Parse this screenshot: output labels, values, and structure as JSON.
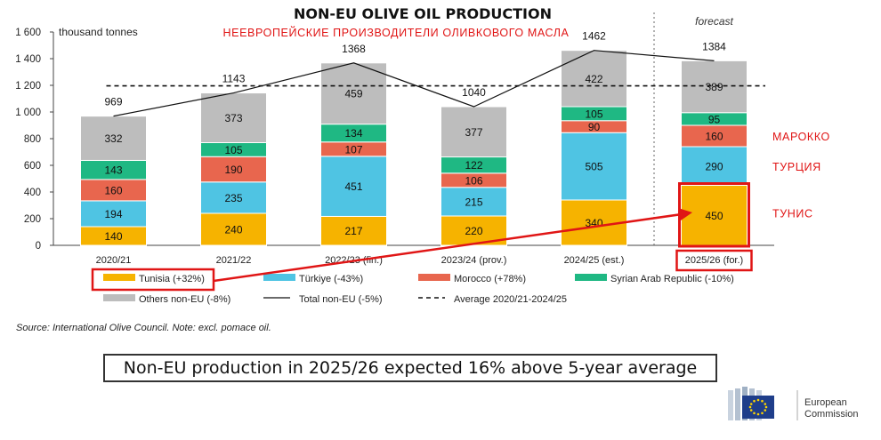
{
  "chart_data": {
    "type": "bar",
    "stacked": true,
    "title": "NON-EU OLIVE OIL PRODUCTION",
    "ylabel": "thousand tonnes",
    "ylim": [
      0,
      1600
    ],
    "yticks": [
      0,
      200,
      400,
      600,
      800,
      1000,
      1200,
      1400,
      1600
    ],
    "ytick_labels": [
      "0",
      "200",
      "400",
      "600",
      "800",
      "1 000",
      "1 200",
      "1 400",
      "1 600"
    ],
    "categories": [
      "2020/21",
      "2021/22",
      "2022/23 (fin.)",
      "2023/24 (prov.)",
      "2024/25 (est.)",
      "2025/26 (for.)"
    ],
    "series": [
      {
        "name": "Tunisia (+32%)",
        "color": "#f6b300",
        "values": [
          140,
          240,
          217,
          220,
          340,
          450
        ]
      },
      {
        "name": "Türkiye (-43%)",
        "color": "#4fc4e3",
        "values": [
          194,
          235,
          451,
          215,
          505,
          290
        ]
      },
      {
        "name": "Morocco (+78%)",
        "color": "#e8664e",
        "values": [
          160,
          190,
          107,
          106,
          90,
          160
        ]
      },
      {
        "name": "Syrian Arab Republic (-10%)",
        "color": "#1fb883",
        "values": [
          143,
          105,
          134,
          122,
          105,
          95
        ]
      },
      {
        "name": "Others non-EU (-8%)",
        "color": "#bdbdbd",
        "values": [
          332,
          373,
          459,
          377,
          422,
          389
        ]
      }
    ],
    "totals": [
      969,
      1143,
      1368,
      1040,
      1462,
      1384
    ],
    "total_line_name": "Total non-EU (-5%)",
    "average_line": {
      "name": "Average 2020/21-2024/25",
      "value": 1196
    },
    "forecast_label": "forecast",
    "grid": false,
    "legend": "bottom"
  },
  "annotations": {
    "russian_title": "НЕЕВРОПЕЙСКИЕ ПРОИЗВОДИТЕЛИ ОЛИВКОВОГО МАСЛА",
    "morocco": "МАРОККО",
    "turkey": "ТУРЦИЯ",
    "tunisia": "ТУНИС",
    "annotation_color": "#e01515"
  },
  "source": "Source: International Olive Council. Note: excl. pomace oil.",
  "caption": "Non-EU production in 2025/26 expected 16% above 5-year average",
  "logo": {
    "line1": "European",
    "line2": "Commission"
  }
}
